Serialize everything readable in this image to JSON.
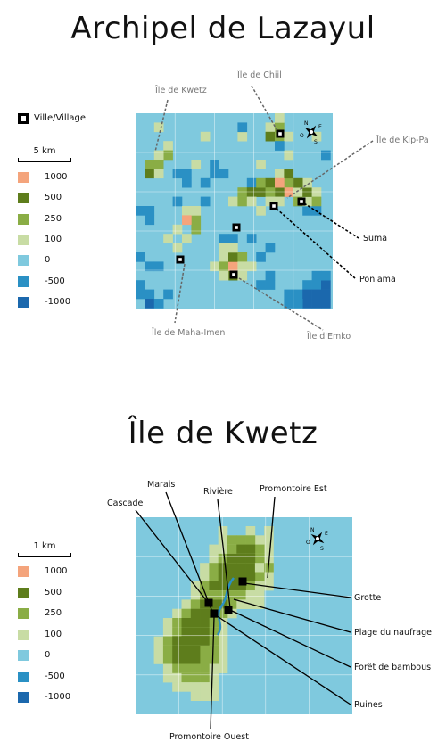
{
  "top": {
    "title": "Archipel de Lazayul",
    "legend": {
      "settlement": "Ville/Village",
      "scale": "5 km",
      "items": [
        {
          "label": "1000",
          "color": "#f4a47c"
        },
        {
          "label": "500",
          "color": "#5e7d1c"
        },
        {
          "label": "250",
          "color": "#8aad45"
        },
        {
          "label": "100",
          "color": "#c8dca4"
        },
        {
          "label": "0",
          "color": "#7fc9de"
        },
        {
          "label": "-500",
          "color": "#2a90c4"
        },
        {
          "label": "-1000",
          "color": "#1b68ad"
        }
      ]
    },
    "islands": [
      "Île de Kwetz",
      "Île de Chiil",
      "Île de Kip-Pa",
      "Île de Maha-Imen",
      "Île d'Emko"
    ],
    "towns": [
      "Suma",
      "Poniama"
    ],
    "compass_icon": "compass-rose-icon"
  },
  "bottom": {
    "title": "Île de Kwetz",
    "legend": {
      "scale": "1 km",
      "items": [
        {
          "label": "1000",
          "color": "#f4a47c"
        },
        {
          "label": "500",
          "color": "#5e7d1c"
        },
        {
          "label": "250",
          "color": "#8aad45"
        },
        {
          "label": "100",
          "color": "#c8dca4"
        },
        {
          "label": "0",
          "color": "#7fc9de"
        },
        {
          "label": "-500",
          "color": "#2a90c4"
        },
        {
          "label": "-1000",
          "color": "#1b68ad"
        }
      ]
    },
    "places": {
      "cascade": "Cascade",
      "marais": "Marais",
      "riviere": "Rivière",
      "promontoire_est": "Promontoire Est",
      "grotte": "Grotte",
      "plage": "Plage du naufrage",
      "foret": "Forêt de bambous",
      "ruines": "Ruines",
      "promontoire_ouest": "Promontoire Ouest"
    },
    "compass_icon": "compass-rose-icon"
  }
}
